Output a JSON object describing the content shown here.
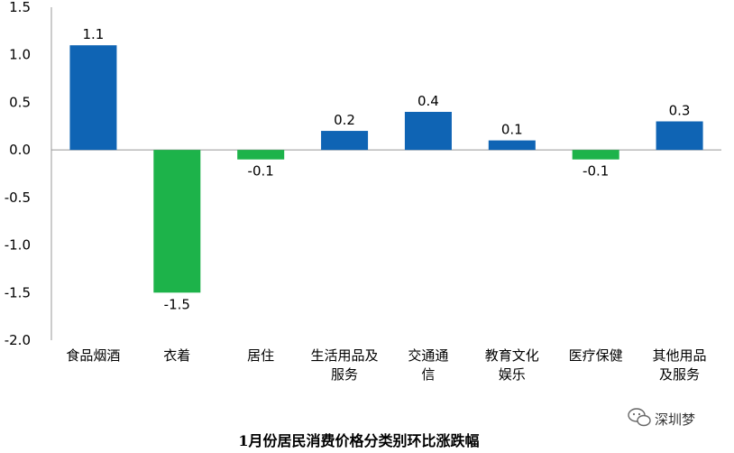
{
  "chart_data": {
    "type": "bar",
    "title": "1月份居民消费价格分类别环比涨跌幅",
    "categories": [
      [
        "食品烟酒"
      ],
      [
        "衣着"
      ],
      [
        "居住"
      ],
      [
        "生活用品及",
        "服务"
      ],
      [
        "交通通",
        "信"
      ],
      [
        "教育文化",
        "娱乐"
      ],
      [
        "医疗保健"
      ],
      [
        "其他用品",
        "及服务"
      ]
    ],
    "values": [
      1.1,
      -1.5,
      -0.1,
      0.2,
      0.4,
      0.1,
      -0.1,
      0.3
    ],
    "value_labels": [
      "1.1",
      "-1.5",
      "-0.1",
      "0.2",
      "0.4",
      "0.1",
      "-0.1",
      "0.3"
    ],
    "ylim": [
      -2.0,
      1.5
    ],
    "yticks": [
      "1.5",
      "1.0",
      "0.5",
      "0.0",
      "-0.5",
      "-1.0",
      "-1.5",
      "-2.0"
    ],
    "ytick_values": [
      1.5,
      1.0,
      0.5,
      0.0,
      -0.5,
      -1.0,
      -1.5,
      -2.0
    ],
    "grid": false,
    "colors": {
      "positive": "#0f64b4",
      "negative": "#1db34a"
    }
  },
  "watermark": {
    "text": "深圳梦",
    "icon": "wechat-icon"
  }
}
